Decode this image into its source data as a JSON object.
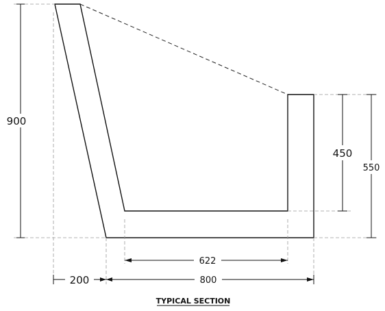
{
  "dimensions": {
    "left_height": "900",
    "right_outer_height": "550",
    "right_inner_height": "450",
    "inner_width": "622",
    "base_offset": "200",
    "base_width": "800"
  },
  "title": "TYPICAL SECTION",
  "colors": {
    "line": "#111111",
    "concrete_fill": "#f4f4f4",
    "extension_line": "#999999",
    "aggregate_specks": "#888888"
  }
}
